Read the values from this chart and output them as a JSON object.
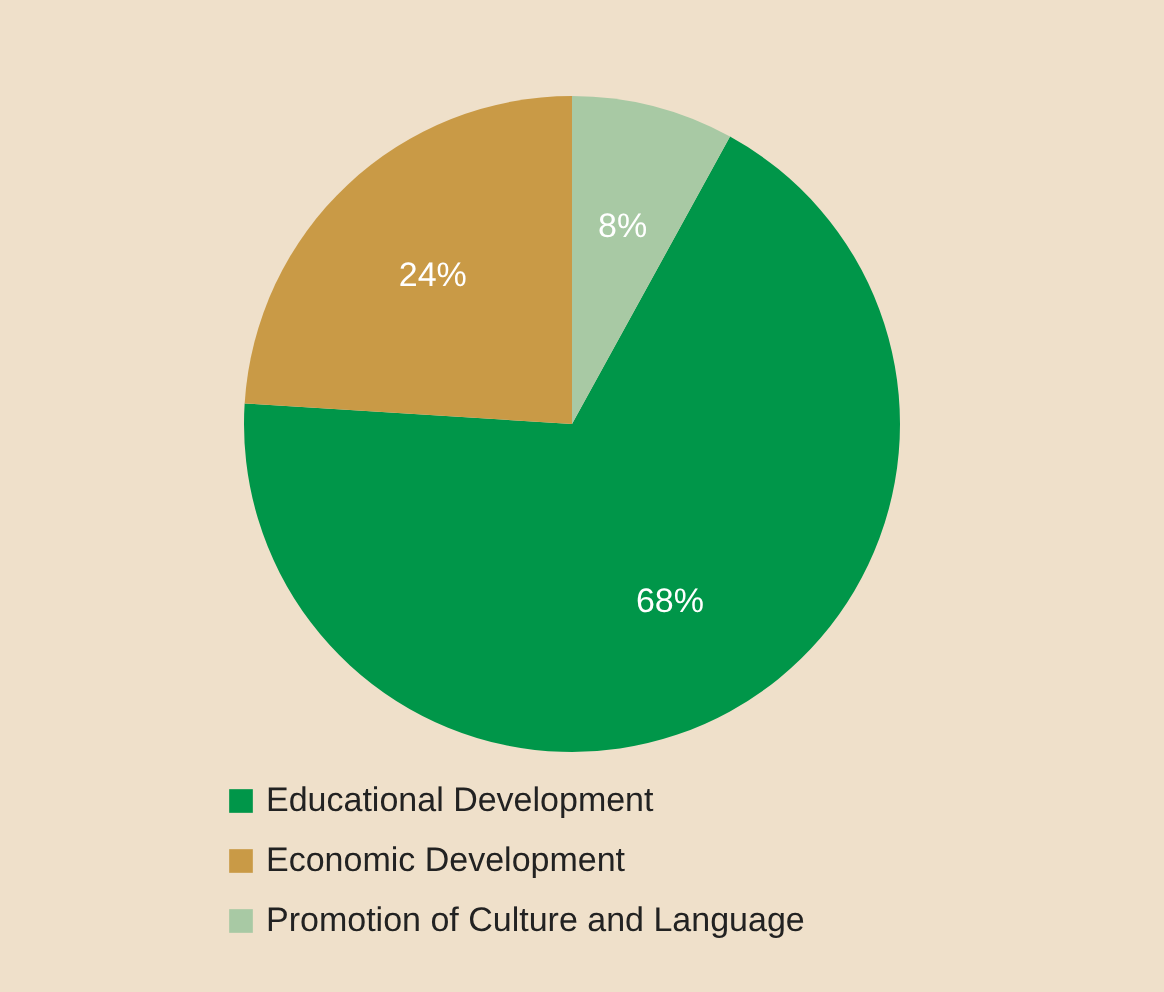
{
  "chart_data": {
    "type": "pie",
    "categories": [
      "Educational Development",
      "Economic Development",
      "Promotion of Culture and Language"
    ],
    "values": [
      68,
      24,
      8
    ],
    "colors": [
      "#009649",
      "#c99a46",
      "#a8c9a4"
    ],
    "value_labels": [
      "68%",
      "24%",
      "8%"
    ],
    "legend": "bottom"
  }
}
